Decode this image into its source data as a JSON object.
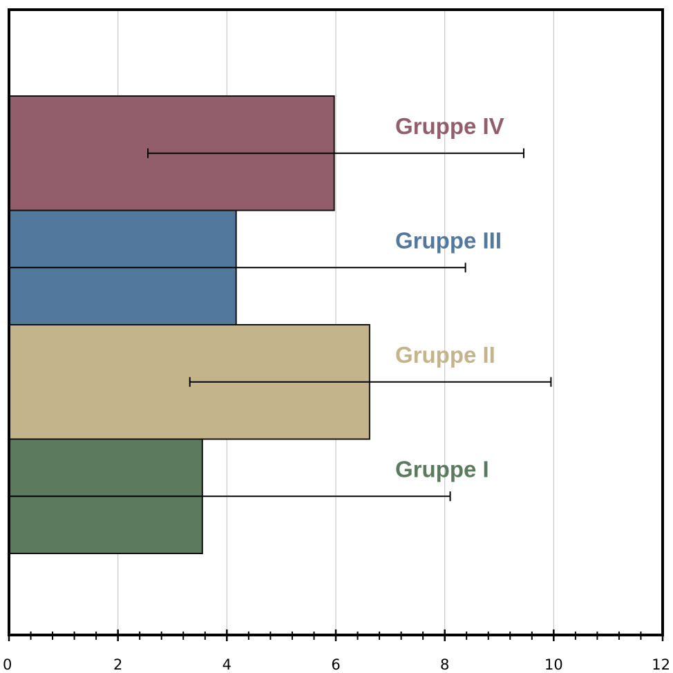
{
  "chart_data": {
    "type": "bar",
    "orientation": "horizontal",
    "xlim": [
      0,
      12
    ],
    "xticks": [
      0,
      2,
      4,
      6,
      8,
      10,
      12
    ],
    "minor_tick_step": 0.4,
    "grid": "vertical",
    "legend": "none",
    "series": [
      {
        "name": "Gruppe I",
        "value": 3.55,
        "err_low": 0.0,
        "err_high": 8.1,
        "color": "#5b7a5e"
      },
      {
        "name": "Gruppe II",
        "value": 6.62,
        "err_low": 3.32,
        "err_high": 9.95,
        "color": "#c4b48c"
      },
      {
        "name": "Gruppe III",
        "value": 4.17,
        "err_low": 0.0,
        "err_high": 8.38,
        "color": "#53789d"
      },
      {
        "name": "Gruppe IV",
        "value": 5.97,
        "err_low": 2.55,
        "err_high": 9.45,
        "color": "#925e6c"
      }
    ]
  }
}
